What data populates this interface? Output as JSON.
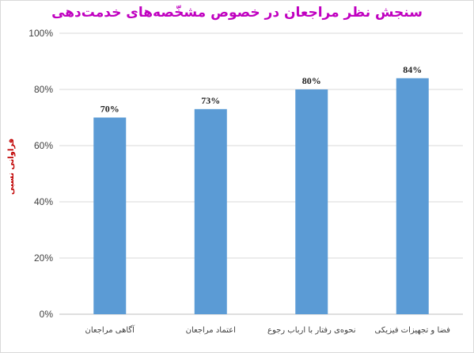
{
  "chart_data": {
    "type": "bar",
    "title": "سنجش نظر مراجعان در خصوص مشخّصه‌های خدمت‌دهی",
    "ylabel": "فراوانی نسبی",
    "xlabel": "",
    "categories": [
      "آگاهی مراجعان",
      "اعتماد مراجعان",
      "نحوه‌ی رفتار با ارباب رجوع",
      "فضا و تجهیزات فیزیکی"
    ],
    "values": [
      70,
      73,
      80,
      84
    ],
    "data_labels": [
      "70%",
      "73%",
      "80%",
      "84%"
    ],
    "yticks": [
      "0%",
      "20%",
      "40%",
      "60%",
      "80%",
      "100%"
    ],
    "ylim": [
      0,
      100
    ],
    "grid": true,
    "legend": "none",
    "bar_color": "#5b9bd5",
    "grid_color": "#d9d9d9",
    "title_color": "#c000c0",
    "ylabel_color": "#c00000"
  }
}
